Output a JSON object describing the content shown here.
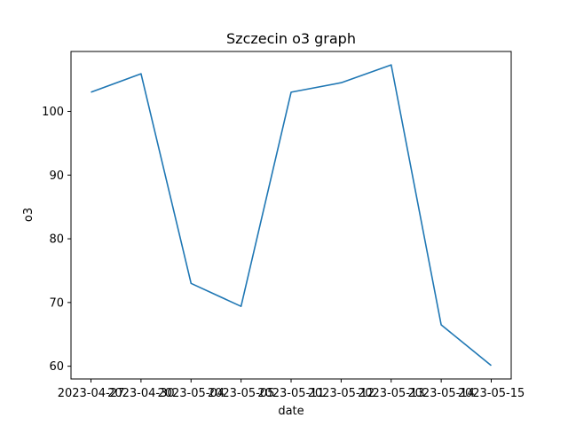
{
  "chart_data": {
    "type": "line",
    "title": "Szczecin o3 graph",
    "xlabel": "date",
    "ylabel": "o3",
    "categories": [
      "2023-04-27",
      "2023-04-30",
      "2023-05-04",
      "2023-05-05",
      "2023-05-11",
      "2023-05-12",
      "2023-05-13",
      "2023-05-14",
      "2023-05-15"
    ],
    "series": [
      {
        "name": "",
        "color": "#1f77b4",
        "values": [
          103.0,
          105.9,
          73.0,
          69.4,
          103.0,
          104.5,
          107.3,
          66.5,
          60.1
        ]
      }
    ],
    "ylim": [
      58.0,
      109.4
    ],
    "yticks": [
      60,
      70,
      80,
      90,
      100
    ],
    "grid": false
  }
}
